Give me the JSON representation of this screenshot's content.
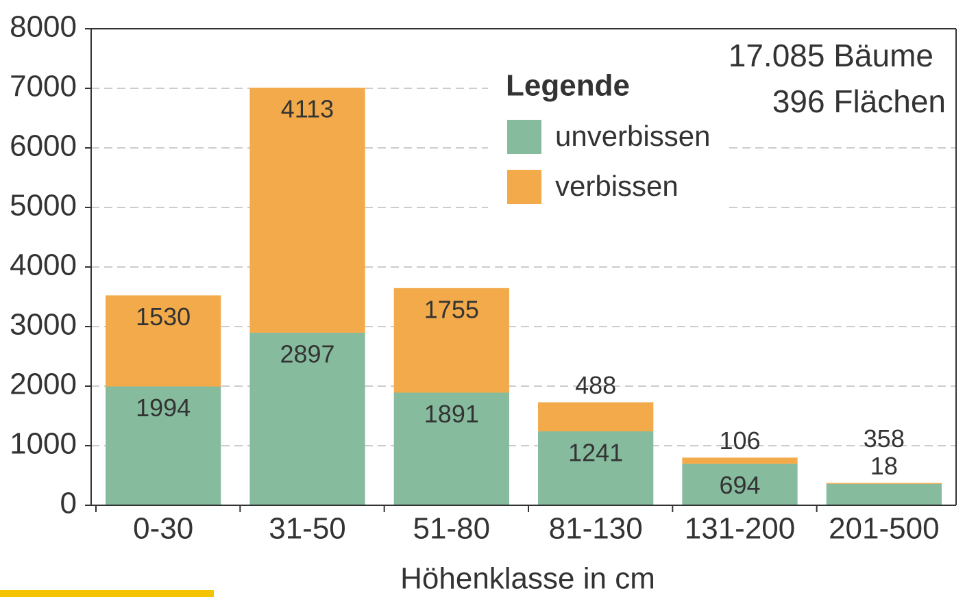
{
  "chart_data": {
    "type": "stacked_bar",
    "categories": [
      "0-30",
      "31-50",
      "51-80",
      "81-130",
      "131-200",
      "201-500"
    ],
    "series": [
      {
        "name": "unverbissen",
        "color": "#86bb9e",
        "values": [
          1994,
          2897,
          1891,
          1241,
          694,
          358
        ]
      },
      {
        "name": "verbissen",
        "color": "#f2aa4a",
        "values": [
          1530,
          4113,
          1755,
          488,
          106,
          18
        ]
      }
    ],
    "ylim": [
      0,
      8000
    ],
    "yticks": [
      0,
      1000,
      2000,
      3000,
      4000,
      5000,
      6000,
      7000,
      8000
    ],
    "grid": true,
    "x_label": "Höhenklasse in cm",
    "legend_title": "Legende",
    "annotations": [
      "17.085 Bäume",
      "396 Flächen"
    ]
  }
}
